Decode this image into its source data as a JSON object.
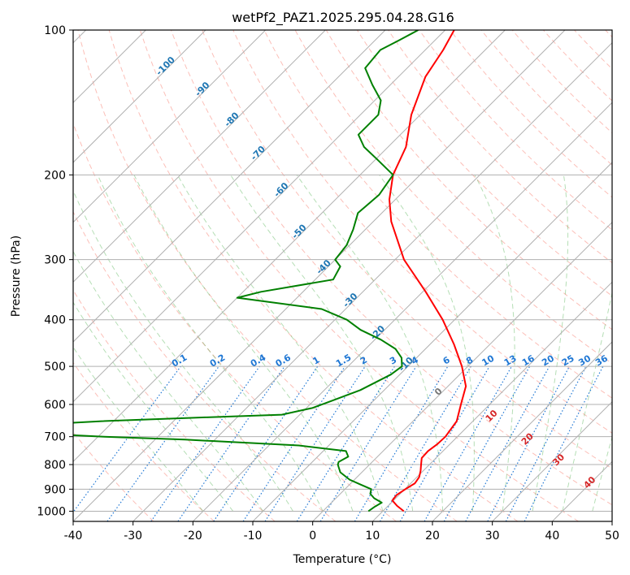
{
  "chart_data": {
    "type": "line",
    "subtype": "skew-t log-p diagram",
    "title": "wetPf2_PAZ1.2025.295.04.28.G16",
    "xlabel": "Temperature (°C)",
    "ylabel": "Pressure (hPa)",
    "xlim": [
      -40,
      50
    ],
    "ylim": [
      1050,
      100
    ],
    "y_scale": "log",
    "grid": true,
    "x_ticks": [
      "-40",
      "-30",
      "-20",
      "-10",
      "0",
      "10",
      "20",
      "30",
      "40",
      "50"
    ],
    "y_ticks": [
      "100",
      "200",
      "300",
      "400",
      "500",
      "600",
      "700",
      "800",
      "900",
      "1000"
    ],
    "colors": {
      "temperature": "#ff0000",
      "dewpoint": "#008000",
      "mixing_ratio": "#1f77d4",
      "isotherm_label": "#1f77b4",
      "dry_adiabat": "#fa8072",
      "moist_adiabat": "#2ca02c",
      "grid": "#b0b0b0",
      "theta_e_label": "#d62728"
    },
    "series": [
      {
        "role": "temperature",
        "color": "#ff0000",
        "points": [
          {
            "p": 1000,
            "t": 13.5
          },
          {
            "p": 975,
            "t": 11.5
          },
          {
            "p": 950,
            "t": 9.8
          },
          {
            "p": 925,
            "t": 9.6
          },
          {
            "p": 900,
            "t": 10.1
          },
          {
            "p": 875,
            "t": 10.7
          },
          {
            "p": 850,
            "t": 10.4
          },
          {
            "p": 825,
            "t": 9.6
          },
          {
            "p": 800,
            "t": 8.6
          },
          {
            "p": 775,
            "t": 7.6
          },
          {
            "p": 750,
            "t": 7.5
          },
          {
            "p": 725,
            "t": 7.9
          },
          {
            "p": 700,
            "t": 8.0
          },
          {
            "p": 650,
            "t": 7.3
          },
          {
            "p": 600,
            "t": 5.2
          },
          {
            "p": 550,
            "t": 3.0
          },
          {
            "p": 500,
            "t": -1.0
          },
          {
            "p": 450,
            "t": -6.0
          },
          {
            "p": 400,
            "t": -12.0
          },
          {
            "p": 350,
            "t": -19.5
          },
          {
            "p": 300,
            "t": -28.5
          },
          {
            "p": 250,
            "t": -37.0
          },
          {
            "p": 225,
            "t": -41.0
          },
          {
            "p": 200,
            "t": -44.5
          },
          {
            "p": 175,
            "t": -47.0
          },
          {
            "p": 150,
            "t": -51.5
          },
          {
            "p": 125,
            "t": -55.5
          },
          {
            "p": 110,
            "t": -57.0
          },
          {
            "p": 100,
            "t": -58.5
          }
        ]
      },
      {
        "role": "dewpoint",
        "color": "#008000",
        "points": [
          {
            "p": 1000,
            "t": 7.6
          },
          {
            "p": 980,
            "t": 7.9
          },
          {
            "p": 960,
            "t": 8.4
          },
          {
            "p": 940,
            "t": 6.4
          },
          {
            "p": 920,
            "t": 5.0
          },
          {
            "p": 900,
            "t": 4.4
          },
          {
            "p": 880,
            "t": 1.8
          },
          {
            "p": 860,
            "t": -0.8
          },
          {
            "p": 830,
            "t": -3.6
          },
          {
            "p": 800,
            "t": -5.3
          },
          {
            "p": 790,
            "t": -5.6
          },
          {
            "p": 770,
            "t": -4.9
          },
          {
            "p": 750,
            "t": -6.2
          },
          {
            "p": 730,
            "t": -15.0
          },
          {
            "p": 710,
            "t": -35.0
          },
          {
            "p": 700,
            "t": -49.0
          },
          {
            "p": 690,
            "t": -60.0
          },
          {
            "p": 670,
            "t": -70.0
          },
          {
            "p": 650,
            "t": -52.0
          },
          {
            "p": 640,
            "t": -38.0
          },
          {
            "p": 630,
            "t": -23.0
          },
          {
            "p": 610,
            "t": -19.0
          },
          {
            "p": 590,
            "t": -17.0
          },
          {
            "p": 560,
            "t": -14.0
          },
          {
            "p": 520,
            "t": -11.5
          },
          {
            "p": 500,
            "t": -11.0
          },
          {
            "p": 480,
            "t": -12.5
          },
          {
            "p": 460,
            "t": -15.0
          },
          {
            "p": 440,
            "t": -19.0
          },
          {
            "p": 420,
            "t": -24.0
          },
          {
            "p": 400,
            "t": -28.0
          },
          {
            "p": 380,
            "t": -34.0
          },
          {
            "p": 360,
            "t": -50.0
          },
          {
            "p": 350,
            "t": -47.0
          },
          {
            "p": 330,
            "t": -37.0
          },
          {
            "p": 310,
            "t": -38.0
          },
          {
            "p": 300,
            "t": -40.0
          },
          {
            "p": 280,
            "t": -40.5
          },
          {
            "p": 260,
            "t": -42.0
          },
          {
            "p": 240,
            "t": -44.0
          },
          {
            "p": 220,
            "t": -43.5
          },
          {
            "p": 200,
            "t": -44.5
          },
          {
            "p": 185,
            "t": -50.0
          },
          {
            "p": 175,
            "t": -54.0
          },
          {
            "p": 165,
            "t": -57.0
          },
          {
            "p": 150,
            "t": -57.0
          },
          {
            "p": 140,
            "t": -59.0
          },
          {
            "p": 130,
            "t": -63.0
          },
          {
            "p": 120,
            "t": -67.0
          },
          {
            "p": 110,
            "t": -67.5
          },
          {
            "p": 105,
            "t": -66.0
          },
          {
            "p": 100,
            "t": -64.5
          }
        ]
      }
    ],
    "isotherm_labels": [
      "-100",
      "-90",
      "-80",
      "-70",
      "-60",
      "-50",
      "-40",
      "-30",
      "-20",
      "-10",
      "0"
    ],
    "isotherm_label_positions": [
      {
        "t": -100,
        "p": 120
      },
      {
        "t": -90,
        "p": 134
      },
      {
        "t": -80,
        "p": 155
      },
      {
        "t": -70,
        "p": 182
      },
      {
        "t": -60,
        "p": 217
      },
      {
        "t": -50,
        "p": 265
      },
      {
        "t": -40,
        "p": 314
      },
      {
        "t": -30,
        "p": 368
      },
      {
        "t": -20,
        "p": 430
      },
      {
        "t": -10,
        "p": 500
      },
      {
        "t": 0,
        "p": 570
      }
    ],
    "mixing_ratio_labels": [
      "0.1",
      "0.2",
      "0.4",
      "0.6",
      "1",
      "1.5",
      "2",
      "3",
      "4",
      "6",
      "8",
      "10",
      "13",
      "16",
      "20",
      "25",
      "30",
      "36"
    ],
    "mixing_ratio_values": [
      0.1,
      0.2,
      0.4,
      0.6,
      1,
      1.5,
      2,
      3,
      4,
      6,
      8,
      10,
      13,
      16,
      20,
      25,
      30,
      36
    ],
    "theta_e_labels": [
      "10",
      "20",
      "30",
      "40"
    ],
    "theta_e_label_positions": [
      {
        "t": 30.2,
        "p": 640
      },
      {
        "t": 36.2,
        "p": 715
      },
      {
        "t": 41.4,
        "p": 790
      },
      {
        "t": 46.6,
        "p": 880
      }
    ]
  }
}
